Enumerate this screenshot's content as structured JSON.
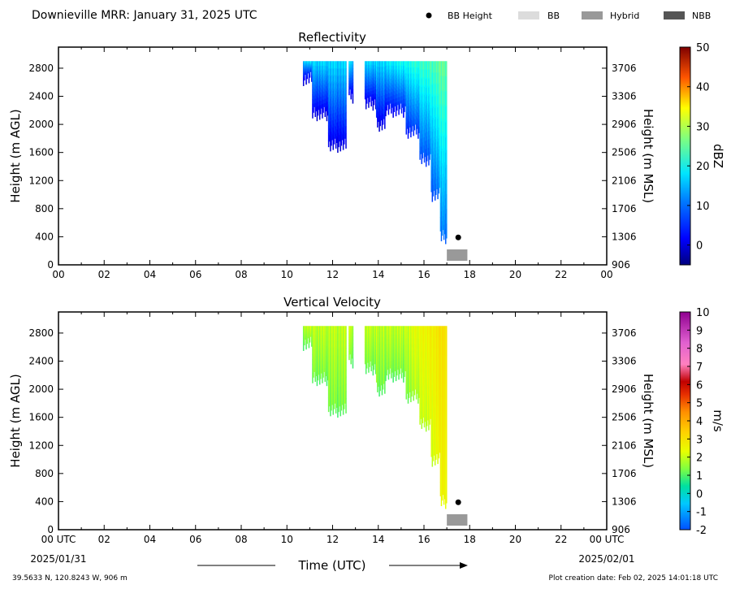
{
  "header": {
    "title": "Downieville MRR:  January 31, 2025 UTC",
    "legend": [
      {
        "label": "BB Height",
        "kind": "dot",
        "color": "#000000"
      },
      {
        "label": "BB",
        "kind": "box",
        "color": "#dcdcdc"
      },
      {
        "label": "Hybrid",
        "kind": "box",
        "color": "#999999"
      },
      {
        "label": "NBB",
        "kind": "box",
        "color": "#555555"
      }
    ]
  },
  "footer": {
    "location": "39.5633 N, 120.8243 W, 906 m",
    "created": "Plot creation date: Feb 02, 2025 14:01:18 UTC",
    "date_start": "2025/01/31",
    "date_end": "2025/02/01",
    "time_label": "Time (UTC)"
  },
  "chart_data": [
    {
      "type": "heatmap",
      "title": "Reflectivity",
      "xlabel": "",
      "ylabel": "Height (m AGL)",
      "y2label": "Height (m MSL)",
      "xlim": [
        0,
        24
      ],
      "ylim": [
        0,
        3100
      ],
      "x_ticks": [
        "00",
        "02",
        "04",
        "06",
        "08",
        "10",
        "12",
        "14",
        "16",
        "18",
        "20",
        "22",
        "00"
      ],
      "y_ticks": [
        0,
        400,
        800,
        1200,
        1600,
        2000,
        2400,
        2800
      ],
      "y2_ticks": [
        906,
        1306,
        1706,
        2106,
        2506,
        2906,
        3306,
        3706
      ],
      "colorbar": {
        "label": "dBZ",
        "min": -5,
        "max": 50,
        "ticks": [
          0,
          10,
          20,
          30,
          40,
          50
        ],
        "colormap": "jet"
      },
      "precip_segments": [
        {
          "start": 10.7,
          "end": 11.1,
          "bottom": 2550
        },
        {
          "start": 11.1,
          "end": 11.8,
          "bottom": 2050
        },
        {
          "start": 11.8,
          "end": 12.6,
          "bottom": 1600
        },
        {
          "start": 12.7,
          "end": 12.9,
          "bottom": 2300
        },
        {
          "start": 13.4,
          "end": 13.9,
          "bottom": 2200
        },
        {
          "start": 13.9,
          "end": 14.3,
          "bottom": 1900
        },
        {
          "start": 14.3,
          "end": 15.2,
          "bottom": 2100
        },
        {
          "start": 15.2,
          "end": 15.8,
          "bottom": 1800
        },
        {
          "start": 15.8,
          "end": 16.3,
          "bottom": 1400
        },
        {
          "start": 16.3,
          "end": 16.7,
          "bottom": 900
        },
        {
          "start": 16.7,
          "end": 17.0,
          "bottom": 300
        }
      ],
      "bb_height": {
        "time": 17.5,
        "height": 390
      },
      "bb_type_bar": {
        "start": 17.0,
        "end": 17.9,
        "type": "Hybrid"
      }
    },
    {
      "type": "heatmap",
      "title": "Vertical Velocity",
      "xlabel": "Time (UTC)",
      "ylabel": "Height (m AGL)",
      "y2label": "Height (m MSL)",
      "xlim": [
        0,
        24
      ],
      "ylim": [
        0,
        3100
      ],
      "x_ticks": [
        "00 UTC",
        "02",
        "04",
        "06",
        "08",
        "10",
        "12",
        "14",
        "16",
        "18",
        "20",
        "22",
        "00 UTC"
      ],
      "y_ticks": [
        0,
        400,
        800,
        1200,
        1600,
        2000,
        2400,
        2800
      ],
      "y2_ticks": [
        906,
        1306,
        1706,
        2106,
        2506,
        2906,
        3306,
        3706
      ],
      "colorbar": {
        "label": "m/s",
        "min": -2,
        "max": 10,
        "ticks": [
          -2,
          -1,
          0,
          1,
          2,
          3,
          4,
          5,
          6,
          7,
          8,
          9,
          10
        ],
        "colormap": "velocity"
      },
      "precip_segments": [
        {
          "start": 10.7,
          "end": 11.1,
          "bottom": 2550
        },
        {
          "start": 11.1,
          "end": 11.8,
          "bottom": 2050
        },
        {
          "start": 11.8,
          "end": 12.6,
          "bottom": 1600
        },
        {
          "start": 12.7,
          "end": 12.9,
          "bottom": 2300
        },
        {
          "start": 13.4,
          "end": 13.9,
          "bottom": 2200
        },
        {
          "start": 13.9,
          "end": 14.3,
          "bottom": 1900
        },
        {
          "start": 14.3,
          "end": 15.2,
          "bottom": 2100
        },
        {
          "start": 15.2,
          "end": 15.8,
          "bottom": 1800
        },
        {
          "start": 15.8,
          "end": 16.3,
          "bottom": 1400
        },
        {
          "start": 16.3,
          "end": 16.7,
          "bottom": 900
        },
        {
          "start": 16.7,
          "end": 17.0,
          "bottom": 300
        }
      ],
      "bb_height": {
        "time": 17.5,
        "height": 390
      },
      "bb_type_bar": {
        "start": 17.0,
        "end": 17.9,
        "type": "Hybrid"
      }
    }
  ]
}
